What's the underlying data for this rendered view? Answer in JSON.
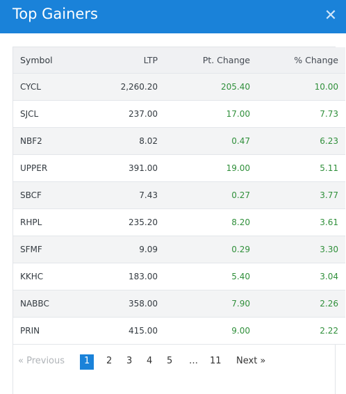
{
  "modal": {
    "title": "Top Gainers",
    "close_icon": "close-icon"
  },
  "table": {
    "headers": {
      "symbol": "Symbol",
      "ltp": "LTP",
      "pt_change": "Pt. Change",
      "pct_change": "% Change"
    },
    "rows": [
      {
        "symbol": "CYCL",
        "ltp": "2,260.20",
        "pt_change": "205.40",
        "pct_change": "10.00"
      },
      {
        "symbol": "SJCL",
        "ltp": "237.00",
        "pt_change": "17.00",
        "pct_change": "7.73"
      },
      {
        "symbol": "NBF2",
        "ltp": "8.02",
        "pt_change": "0.47",
        "pct_change": "6.23"
      },
      {
        "symbol": "UPPER",
        "ltp": "391.00",
        "pt_change": "19.00",
        "pct_change": "5.11"
      },
      {
        "symbol": "SBCF",
        "ltp": "7.43",
        "pt_change": "0.27",
        "pct_change": "3.77"
      },
      {
        "symbol": "RHPL",
        "ltp": "235.20",
        "pt_change": "8.20",
        "pct_change": "3.61"
      },
      {
        "symbol": "SFMF",
        "ltp": "9.09",
        "pt_change": "0.29",
        "pct_change": "3.30"
      },
      {
        "symbol": "KKHC",
        "ltp": "183.00",
        "pt_change": "5.40",
        "pct_change": "3.04"
      },
      {
        "symbol": "NABBC",
        "ltp": "358.00",
        "pt_change": "7.90",
        "pct_change": "2.26"
      },
      {
        "symbol": "PRIN",
        "ltp": "415.00",
        "pt_change": "9.00",
        "pct_change": "2.22"
      }
    ]
  },
  "pagination": {
    "previous": "« Previous",
    "pages": [
      "1",
      "2",
      "3",
      "4",
      "5"
    ],
    "ellipsis": "…",
    "last": "11",
    "next": "Next »",
    "current": "1"
  },
  "colors": {
    "header": "#1a82d9",
    "positive": "#2f8f3a"
  }
}
